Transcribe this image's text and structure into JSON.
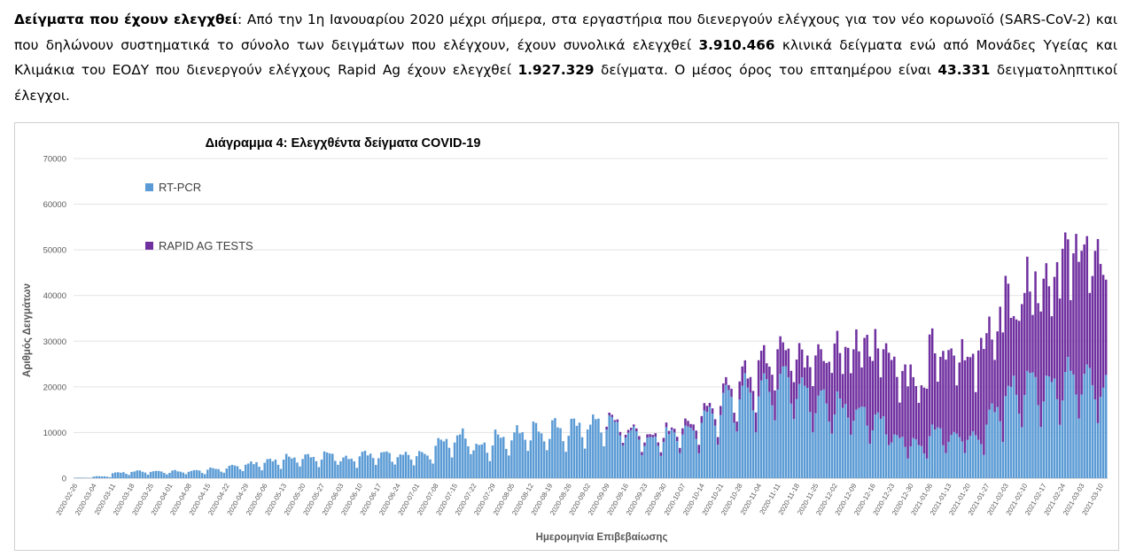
{
  "intro": {
    "heading": "Δείγματα που έχουν ελεγχθεί",
    "text_1": ": Από την 1η Ιανουαρίου 2020 μέχρι σήμερα, στα εργαστήρια που διενεργούν ελέγχους για τον νέο κορωνοϊό (SARS-CoV-2) και που δηλώνουν συστηματικά το σύνολο των δειγμάτων που ελέγχουν, έχουν συνολικά ελεγχθεί ",
    "pcr_total": "3.910.466",
    "text_2": " κλινικά δείγματα ενώ από Μονάδες Υγείας και Κλιμάκια του ΕΟΔΥ που διενεργούν ελέγχους Rapid Ag έχουν ελεγχθεί ",
    "rapid_total": "1.927.329",
    "text_3": " δείγματα. Ο μέσος όρος του επταημέρου είναι ",
    "weekly_avg": "43.331",
    "text_4": " δειγματοληπτικοί έλεγχοι."
  },
  "colors": {
    "pcr": "#5b9bd5",
    "rapid": "#7030a0",
    "grid": "#e3e3e3",
    "axis_text": "#595959"
  },
  "chart_data": {
    "type": "bar",
    "stacked": true,
    "title": "Διάγραμμα 4: Ελεγχθέντα δείγματα COVID-19",
    "xlabel": "Ημερομηνία Επιβεβαίωσης",
    "ylabel": "Αριθμός Δειγμάτων",
    "ylim": [
      0,
      70000
    ],
    "yticks": [
      0,
      10000,
      20000,
      30000,
      40000,
      50000,
      60000,
      70000
    ],
    "grid": true,
    "legend_position": "top-left",
    "x_start": "2020-02-26",
    "x_end": "2021-03-12",
    "xtick_labels": [
      "2020-02-26",
      "2020-03-04",
      "2020-03-11",
      "2020-03-18",
      "2020-03-25",
      "2020-04-01",
      "2020-04-08",
      "2020-04-15",
      "2020-04-22",
      "2020-04-29",
      "2020-05-06",
      "2020-05-13",
      "2020-05-20",
      "2020-05-27",
      "2020-06-03",
      "2020-06-10",
      "2020-06-17",
      "2020-06-24",
      "2020-07-01",
      "2020-07-08",
      "2020-07-15",
      "2020-07-22",
      "2020-07-29",
      "2020-08-05",
      "2020-08-12",
      "2020-08-19",
      "2020-08-26",
      "2020-09-02",
      "2020-09-09",
      "2020-09-16",
      "2020-09-23",
      "2020-09-30",
      "2020-10-07",
      "2020-10-14",
      "2020-10-21",
      "2020-10-28",
      "2020-11-04",
      "2020-11-11",
      "2020-11-18",
      "2020-11-25",
      "2020-12-02",
      "2020-12-09",
      "2020-12-16",
      "2020-12-23",
      "2020-12-30",
      "2021-01-06",
      "2021-01-13",
      "2021-01-20",
      "2021-01-27",
      "2021-02-03",
      "2021-02-10",
      "2021-02-17",
      "2021-02-24",
      "2021-03-03",
      "2021-03-10"
    ],
    "series": [
      {
        "name": "RT-PCR",
        "weekly_values": [
          100,
          400,
          1200,
          1500,
          1500,
          1500,
          1600,
          2000,
          2600,
          3200,
          3900,
          4500,
          4700,
          5000,
          4400,
          5200,
          5100,
          5000,
          5400,
          8500,
          9500,
          7200,
          9000,
          10000,
          10500,
          11000,
          11500,
          12000,
          12000,
          10000,
          9000,
          9500,
          10500,
          14000,
          17000,
          20000,
          21000,
          22500,
          20000,
          17500,
          16000,
          14500,
          13000,
          8500,
          7500,
          10000,
          9500,
          9000,
          15000,
          19500,
          21000,
          21000,
          22000,
          21000,
          20000
        ]
      },
      {
        "name": "RAPID AG TESTS",
        "weekly_values": [
          0,
          0,
          0,
          0,
          0,
          0,
          0,
          0,
          0,
          0,
          0,
          0,
          0,
          0,
          0,
          0,
          0,
          0,
          0,
          0,
          0,
          0,
          0,
          0,
          0,
          0,
          0,
          0,
          600,
          700,
          800,
          900,
          1500,
          1500,
          2000,
          4000,
          7000,
          7500,
          8000,
          11000,
          14000,
          16000,
          17000,
          15000,
          15000,
          19000,
          20000,
          20000,
          21000,
          22000,
          24000,
          25000,
          29000,
          32000,
          29000
        ]
      }
    ]
  }
}
